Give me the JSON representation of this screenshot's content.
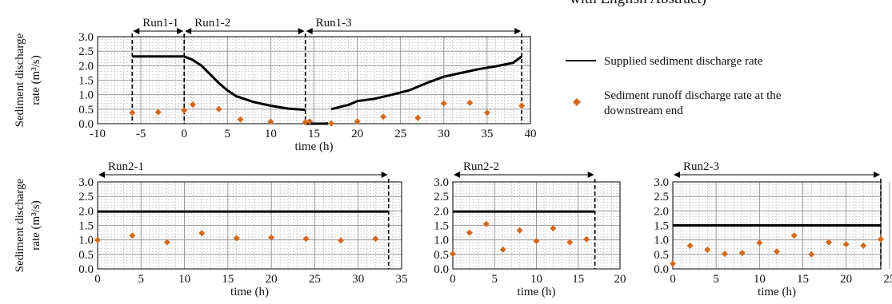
{
  "header_fragment": "with English Abstract)",
  "colors": {
    "supplied": "#000000",
    "runoff": "#d2691e",
    "grid": "#bbbbbb",
    "frame": "#000000"
  },
  "legend": {
    "supplied_label": "Supplied sediment discharge rate",
    "runoff_label_line1": "Sediment runoff discharge rate at the",
    "runoff_label_line2": "downstream end"
  },
  "chart_data": [
    {
      "type": "line",
      "ylabel_line1": "Sediment discharge",
      "ylabel_line2": "rate (m³/s)",
      "xlabel": "time (h)",
      "xlim": [
        -10,
        40
      ],
      "ylim": [
        0,
        3
      ],
      "xticks": [
        -10,
        -5,
        0,
        5,
        10,
        15,
        20,
        25,
        30,
        35,
        40
      ],
      "yticks": [
        "0.0",
        "0.5",
        "1.0",
        "1.5",
        "2.0",
        "2.5",
        "3.0"
      ],
      "grid": true,
      "runs": [
        {
          "label": "Run1-1",
          "from": -6,
          "to": 0
        },
        {
          "label": "Run1-2",
          "from": 0,
          "to": 14
        },
        {
          "label": "Run1-3",
          "from": 14,
          "to": 39
        }
      ],
      "vlines": [
        -6,
        0,
        14,
        39
      ],
      "series": [
        {
          "name": "Supplied sediment discharge rate",
          "segments": [
            [
              [
                -6,
                2.32
              ],
              [
                0,
                2.32
              ],
              [
                1,
                2.2
              ],
              [
                2,
                2.0
              ],
              [
                3,
                1.7
              ],
              [
                4,
                1.4
              ],
              [
                5,
                1.15
              ],
              [
                6,
                0.95
              ],
              [
                7,
                0.85
              ],
              [
                8,
                0.75
              ],
              [
                10,
                0.62
              ],
              [
                12,
                0.52
              ],
              [
                14,
                0.48
              ]
            ],
            [
              [
                14,
                0.05
              ],
              [
                14,
                0.0
              ],
              [
                16.5,
                0.0
              ],
              [
                16.5,
                0.05
              ]
            ],
            [
              [
                17,
                0.5
              ],
              [
                18,
                0.58
              ],
              [
                19,
                0.65
              ],
              [
                20,
                0.78
              ],
              [
                22,
                0.86
              ],
              [
                24,
                1.0
              ],
              [
                26,
                1.15
              ],
              [
                28,
                1.4
              ],
              [
                30,
                1.62
              ],
              [
                32,
                1.75
              ],
              [
                34,
                1.88
              ],
              [
                36,
                1.98
              ],
              [
                38,
                2.1
              ],
              [
                39,
                2.32
              ]
            ]
          ]
        },
        {
          "name": "Sediment runoff discharge rate at the downstream end",
          "points": [
            [
              -6,
              0.38
            ],
            [
              -3,
              0.4
            ],
            [
              0,
              0.46
            ],
            [
              1,
              0.66
            ],
            [
              4,
              0.5
            ],
            [
              6.5,
              0.15
            ],
            [
              10,
              0.07
            ],
            [
              14,
              0.05
            ],
            [
              14.5,
              0.08
            ],
            [
              17,
              0.01
            ],
            [
              20,
              0.08
            ],
            [
              23,
              0.24
            ],
            [
              27,
              0.2
            ],
            [
              30,
              0.7
            ],
            [
              33,
              0.72
            ],
            [
              35,
              0.38
            ],
            [
              39,
              0.62
            ]
          ]
        }
      ]
    },
    {
      "type": "line",
      "ylabel_line1": "Sediment discharge",
      "ylabel_line2": "rate (m³/s)",
      "xlabel": "time (h)",
      "xlim": [
        0,
        35
      ],
      "ylim": [
        0,
        3
      ],
      "xticks": [
        0,
        5,
        10,
        15,
        20,
        25,
        30,
        35
      ],
      "yticks": [
        "0.0",
        "0.5",
        "1.0",
        "1.5",
        "2.0",
        "2.5",
        "3.0"
      ],
      "grid": true,
      "runs": [
        {
          "label": "Run2-1",
          "from": 0,
          "to": 33.5
        }
      ],
      "vlines": [
        33.5
      ],
      "series": [
        {
          "name": "Supplied sediment discharge rate",
          "segments": [
            [
              [
                0,
                1.98
              ],
              [
                33.5,
                1.98
              ]
            ]
          ]
        },
        {
          "name": "Sediment runoff discharge rate at the downstream end",
          "points": [
            [
              0,
              1.0
            ],
            [
              4,
              1.15
            ],
            [
              8,
              0.92
            ],
            [
              12,
              1.23
            ],
            [
              16,
              1.06
            ],
            [
              20,
              1.08
            ],
            [
              24,
              1.04
            ],
            [
              28,
              0.98
            ],
            [
              32,
              1.04
            ]
          ]
        }
      ]
    },
    {
      "type": "line",
      "xlabel": "time (h)",
      "xlim": [
        0,
        20
      ],
      "ylim": [
        0,
        3
      ],
      "xticks": [
        0,
        5,
        10,
        15,
        20
      ],
      "yticks": [
        "0.0",
        "0.5",
        "1.0",
        "1.5",
        "2.0",
        "2.5",
        "3.0"
      ],
      "grid": true,
      "runs": [
        {
          "label": "Run2-2",
          "from": 0,
          "to": 17
        }
      ],
      "vlines": [
        17
      ],
      "series": [
        {
          "name": "Supplied sediment discharge rate",
          "segments": [
            [
              [
                0,
                1.98
              ],
              [
                17,
                1.98
              ]
            ]
          ]
        },
        {
          "name": "Sediment runoff discharge rate at the downstream end",
          "points": [
            [
              0,
              0.52
            ],
            [
              2,
              1.25
            ],
            [
              4,
              1.55
            ],
            [
              6,
              0.67
            ],
            [
              8,
              1.33
            ],
            [
              10,
              0.96
            ],
            [
              12,
              1.4
            ],
            [
              14,
              0.92
            ],
            [
              16,
              1.02
            ]
          ]
        }
      ]
    },
    {
      "type": "line",
      "xlabel": "time (h)",
      "xlim": [
        0,
        24
      ],
      "ylim": [
        0,
        3
      ],
      "xticks": [
        0,
        5,
        10,
        15,
        20,
        25
      ],
      "yticks": [
        "0.0",
        "0.5",
        "1.0",
        "1.5",
        "2.0",
        "2.5",
        "3.0"
      ],
      "grid": true,
      "runs": [
        {
          "label": "Run2-3",
          "from": 0,
          "to": 24
        }
      ],
      "vlines": [
        24
      ],
      "series": [
        {
          "name": "Supplied sediment discharge rate",
          "segments": [
            [
              [
                0,
                1.5
              ],
              [
                24,
                1.5
              ]
            ]
          ]
        },
        {
          "name": "Sediment runoff discharge rate at the downstream end",
          "points": [
            [
              0,
              0.18
            ],
            [
              2,
              0.8
            ],
            [
              4,
              0.66
            ],
            [
              6,
              0.52
            ],
            [
              8,
              0.55
            ],
            [
              10,
              0.9
            ],
            [
              12,
              0.6
            ],
            [
              14,
              1.15
            ],
            [
              16,
              0.5
            ],
            [
              18,
              0.92
            ],
            [
              20,
              0.85
            ],
            [
              22,
              0.8
            ],
            [
              24,
              1.02
            ]
          ]
        }
      ]
    }
  ]
}
